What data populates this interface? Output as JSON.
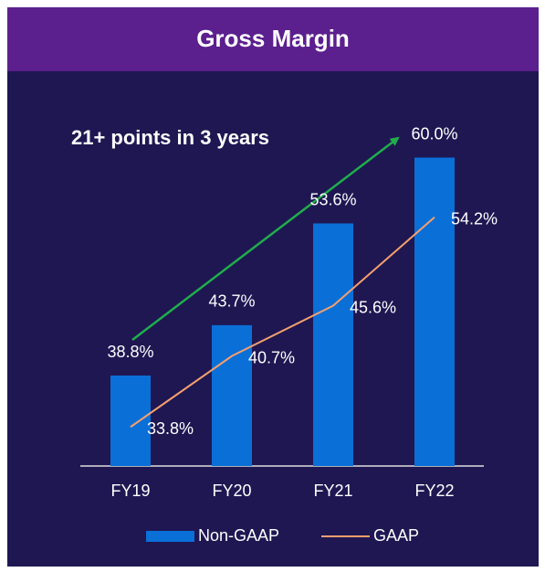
{
  "chart_data": {
    "type": "bar",
    "title": "Gross Margin",
    "annotation": "21+ points in 3 years",
    "categories": [
      "FY19",
      "FY20",
      "FY21",
      "FY22"
    ],
    "series": [
      {
        "name": "Non-GAAP",
        "type": "bar",
        "color": "#0b6fd8",
        "values": [
          38.8,
          43.7,
          53.6,
          60.0
        ],
        "value_labels": [
          "38.8%",
          "43.7%",
          "53.6%",
          "60.0%"
        ]
      },
      {
        "name": "GAAP",
        "type": "line",
        "color": "#f4a06e",
        "values": [
          33.8,
          40.7,
          45.6,
          54.2
        ],
        "value_labels": [
          "33.8%",
          "40.7%",
          "45.6%",
          "54.2%"
        ]
      }
    ],
    "ylim": [
      30,
      62
    ],
    "legend": "bottom"
  }
}
